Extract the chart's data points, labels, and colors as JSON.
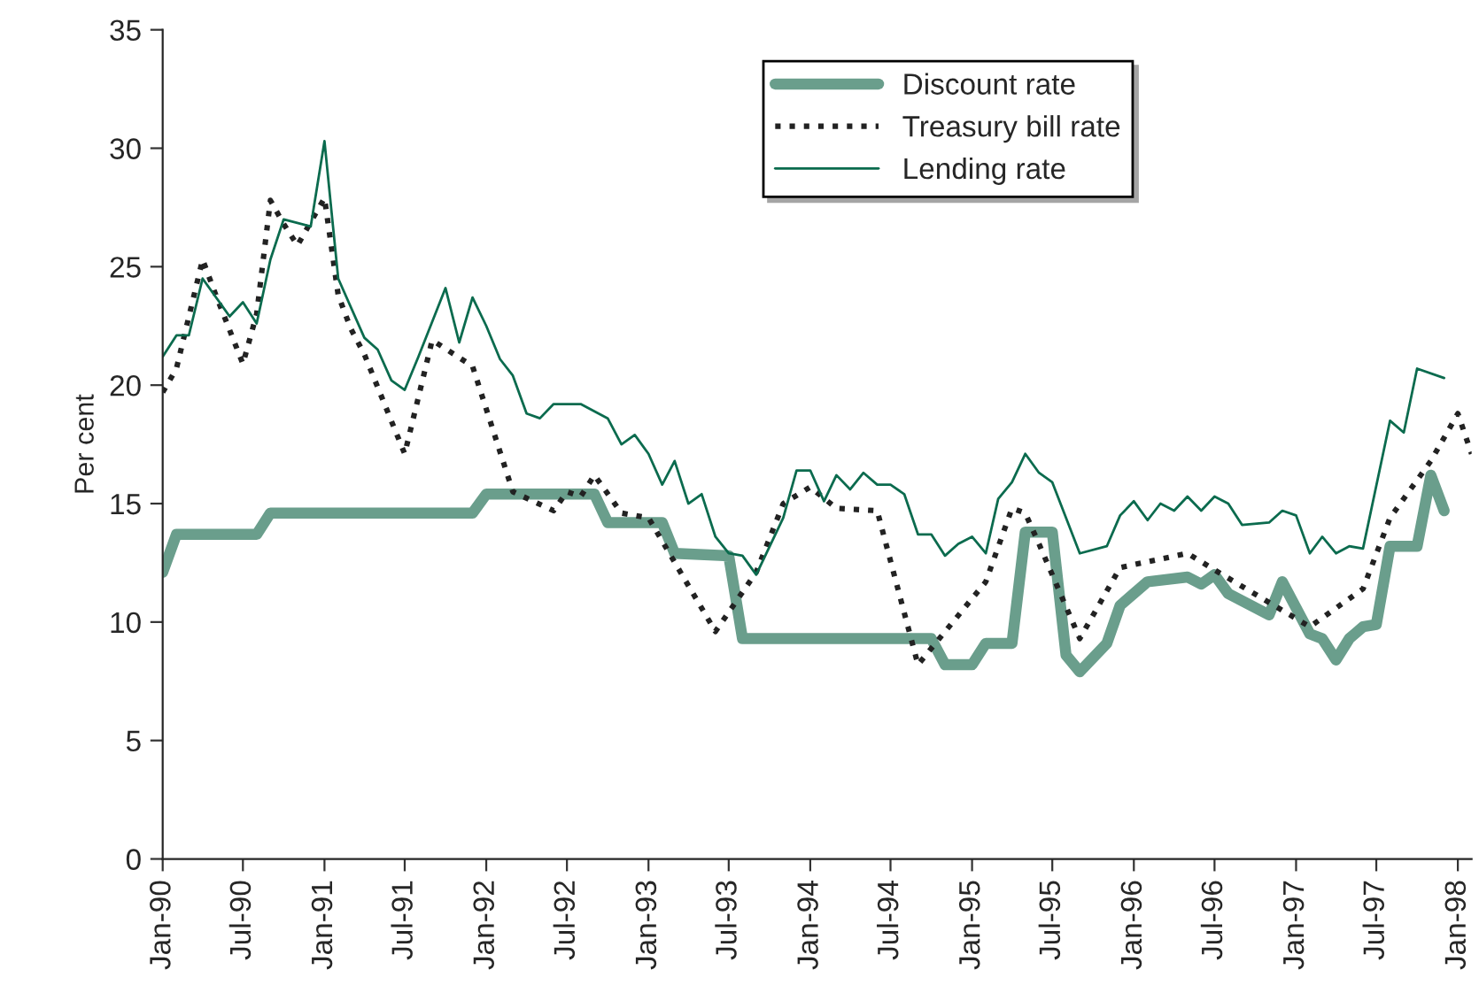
{
  "chart_data": {
    "type": "line",
    "ylabel": "Per cent",
    "ylim": [
      0,
      35
    ],
    "yticks": [
      0,
      5,
      10,
      15,
      20,
      25,
      30,
      35
    ],
    "xlim": [
      "1990-01",
      "1998-02"
    ],
    "xticks": [
      {
        "value": "1990-01",
        "label": "Jan-90"
      },
      {
        "value": "1990-07",
        "label": "Jul-90"
      },
      {
        "value": "1991-01",
        "label": "Jan-91"
      },
      {
        "value": "1991-07",
        "label": "Jul-91"
      },
      {
        "value": "1992-01",
        "label": "Jan-92"
      },
      {
        "value": "1992-07",
        "label": "Jul-92"
      },
      {
        "value": "1993-01",
        "label": "Jan-93"
      },
      {
        "value": "1993-07",
        "label": "Jul-93"
      },
      {
        "value": "1994-01",
        "label": "Jan-94"
      },
      {
        "value": "1994-07",
        "label": "Jul-94"
      },
      {
        "value": "1995-01",
        "label": "Jan-95"
      },
      {
        "value": "1995-07",
        "label": "Jul-95"
      },
      {
        "value": "1996-01",
        "label": "Jan-96"
      },
      {
        "value": "1996-07",
        "label": "Jul-96"
      },
      {
        "value": "1997-01",
        "label": "Jan-97"
      },
      {
        "value": "1997-07",
        "label": "Jul-97"
      },
      {
        "value": "1998-01",
        "label": "Jan-98"
      }
    ],
    "legend": "top",
    "grid": false,
    "series": [
      {
        "name": "Discount rate",
        "color": "#6a9e8c",
        "line_style": "solid",
        "x": [
          "1990-01",
          "1990-02",
          "1990-08",
          "1990-09",
          "1991-12",
          "1992-01",
          "1992-09",
          "1992-10",
          "1993-02",
          "1993-03",
          "1993-07",
          "1993-08",
          "1994-10",
          "1994-11",
          "1995-01",
          "1995-02",
          "1995-04",
          "1995-05",
          "1995-07",
          "1995-08",
          "1995-09",
          "1995-11",
          "1995-12",
          "1996-02",
          "1996-05",
          "1996-06",
          "1996-07",
          "1996-08",
          "1996-11",
          "1996-12",
          "1997-02",
          "1997-03",
          "1997-04",
          "1997-05",
          "1997-06",
          "1997-07",
          "1997-08",
          "1997-10",
          "1997-11",
          "1997-12"
        ],
        "values": [
          12.1,
          13.7,
          13.7,
          14.6,
          14.6,
          15.4,
          15.4,
          14.2,
          14.2,
          12.9,
          12.8,
          9.3,
          9.3,
          8.2,
          8.2,
          9.1,
          9.1,
          13.8,
          13.8,
          8.6,
          7.9,
          9.1,
          10.7,
          11.7,
          11.9,
          11.6,
          12.0,
          11.2,
          10.3,
          11.7,
          9.5,
          9.3,
          8.4,
          9.3,
          9.8,
          9.9,
          13.2,
          13.2,
          16.2,
          14.7
        ]
      },
      {
        "name": "Treasury bill rate",
        "color": "#222222",
        "line_style": "dotted",
        "x": [
          "1990-01",
          "1990-02",
          "1990-04",
          "1990-05",
          "1990-07",
          "1990-08",
          "1990-09",
          "1990-10",
          "1990-11",
          "1991-01",
          "1991-02",
          "1991-03",
          "1991-04",
          "1991-07",
          "1991-09",
          "1991-12",
          "1992-03",
          "1992-06",
          "1992-07",
          "1992-08",
          "1992-09",
          "1992-11",
          "1993-01",
          "1993-06",
          "1993-09",
          "1993-11",
          "1994-01",
          "1994-03",
          "1994-06",
          "1994-09",
          "1995-02",
          "1995-04",
          "1995-05",
          "1995-06",
          "1995-09",
          "1995-12",
          "1996-05",
          "1996-07",
          "1997-02",
          "1997-06",
          "1997-08",
          "1997-11",
          "1998-01",
          "1998-02"
        ],
        "values": [
          19.7,
          20.7,
          25.3,
          23.8,
          20.9,
          23.0,
          27.8,
          26.8,
          25.9,
          27.9,
          23.8,
          22.4,
          21.3,
          17.1,
          21.9,
          20.8,
          15.5,
          14.7,
          15.5,
          15.3,
          16.2,
          14.6,
          14.4,
          9.6,
          12.1,
          15.0,
          15.7,
          14.8,
          14.7,
          8.2,
          11.7,
          14.8,
          14.6,
          13.3,
          9.3,
          12.3,
          12.9,
          12.2,
          9.8,
          11.4,
          14.4,
          16.8,
          18.8,
          17.1
        ]
      },
      {
        "name": "Lending rate",
        "color": "#0b6b4e",
        "line_style": "solid",
        "x": [
          "1990-01",
          "1990-02",
          "1990-03",
          "1990-04",
          "1990-06",
          "1990-07",
          "1990-08",
          "1990-09",
          "1990-10",
          "1990-12",
          "1991-01",
          "1991-02",
          "1991-04",
          "1991-05",
          "1991-06",
          "1991-07",
          "1991-08",
          "1991-10",
          "1991-11",
          "1991-12",
          "1992-01",
          "1992-02",
          "1992-03",
          "1992-04",
          "1992-05",
          "1992-06",
          "1992-08",
          "1992-10",
          "1992-11",
          "1992-12",
          "1993-01",
          "1993-02",
          "1993-03",
          "1993-04",
          "1993-05",
          "1993-06",
          "1993-07",
          "1993-08",
          "1993-09",
          "1993-11",
          "1993-12",
          "1994-01",
          "1994-02",
          "1994-03",
          "1994-04",
          "1994-05",
          "1994-06",
          "1994-07",
          "1994-08",
          "1994-09",
          "1994-10",
          "1994-11",
          "1994-12",
          "1995-01",
          "1995-02",
          "1995-03",
          "1995-04",
          "1995-05",
          "1995-06",
          "1995-07",
          "1995-09",
          "1995-11",
          "1995-12",
          "1996-01",
          "1996-02",
          "1996-03",
          "1996-04",
          "1996-05",
          "1996-06",
          "1996-07",
          "1996-08",
          "1996-09",
          "1996-11",
          "1996-12",
          "1997-01",
          "1997-02",
          "1997-03",
          "1997-04",
          "1997-05",
          "1997-06",
          "1997-08",
          "1997-09",
          "1997-10",
          "1997-12"
        ],
        "values": [
          21.2,
          22.1,
          22.1,
          24.5,
          22.9,
          23.5,
          22.6,
          25.3,
          27.0,
          26.7,
          30.3,
          24.5,
          22.0,
          21.5,
          20.2,
          19.8,
          21.2,
          24.1,
          21.8,
          23.7,
          22.5,
          21.1,
          20.4,
          18.8,
          18.6,
          19.2,
          19.2,
          18.6,
          17.5,
          17.9,
          17.1,
          15.8,
          16.8,
          15.0,
          15.4,
          13.6,
          12.9,
          12.8,
          12.0,
          14.4,
          16.4,
          16.4,
          15.1,
          16.2,
          15.6,
          16.3,
          15.8,
          15.8,
          15.4,
          13.7,
          13.7,
          12.8,
          13.3,
          13.6,
          12.9,
          15.2,
          15.9,
          17.1,
          16.3,
          15.9,
          12.9,
          13.2,
          14.5,
          15.1,
          14.3,
          15.0,
          14.7,
          15.3,
          14.7,
          15.3,
          15.0,
          14.1,
          14.2,
          14.7,
          14.5,
          12.9,
          13.6,
          12.9,
          13.2,
          13.1,
          18.5,
          18.0,
          20.7,
          20.3
        ]
      }
    ]
  }
}
